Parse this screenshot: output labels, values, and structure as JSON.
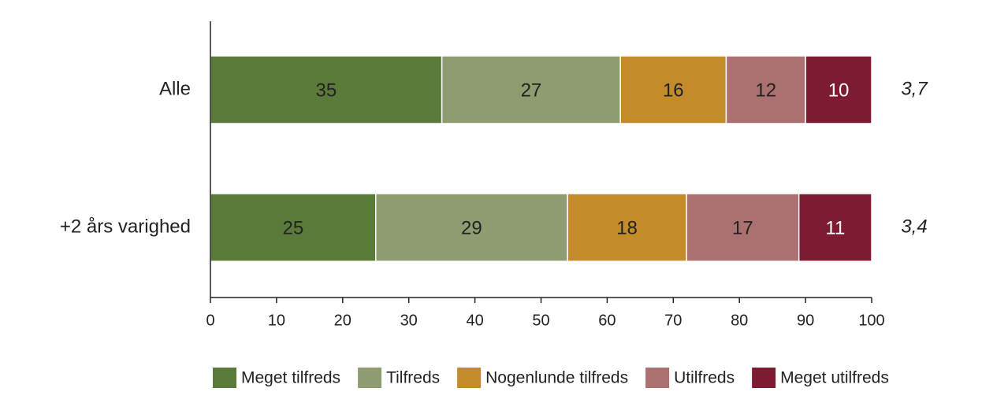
{
  "chart_data": {
    "type": "stacked-barh",
    "categories": [
      "Alle",
      "+2 års varighed"
    ],
    "series": [
      {
        "name": "Meget tilfreds",
        "color": "#5a7a3a",
        "values": [
          35,
          25
        ]
      },
      {
        "name": "Tilfreds",
        "color": "#8f9c72",
        "values": [
          27,
          29
        ]
      },
      {
        "name": "Nogenlunde tilfreds",
        "color": "#c48b2b",
        "values": [
          16,
          18
        ]
      },
      {
        "name": "Utilfreds",
        "color": "#ab7070",
        "values": [
          12,
          17
        ]
      },
      {
        "name": "Meget utilfreds",
        "color": "#7d1c30",
        "values": [
          10,
          11
        ]
      }
    ],
    "annotations": [
      "3,7",
      "3,4"
    ],
    "xlim": [
      0,
      100
    ],
    "xticks": [
      0,
      10,
      20,
      30,
      40,
      50,
      60,
      70,
      80,
      90,
      100
    ]
  }
}
